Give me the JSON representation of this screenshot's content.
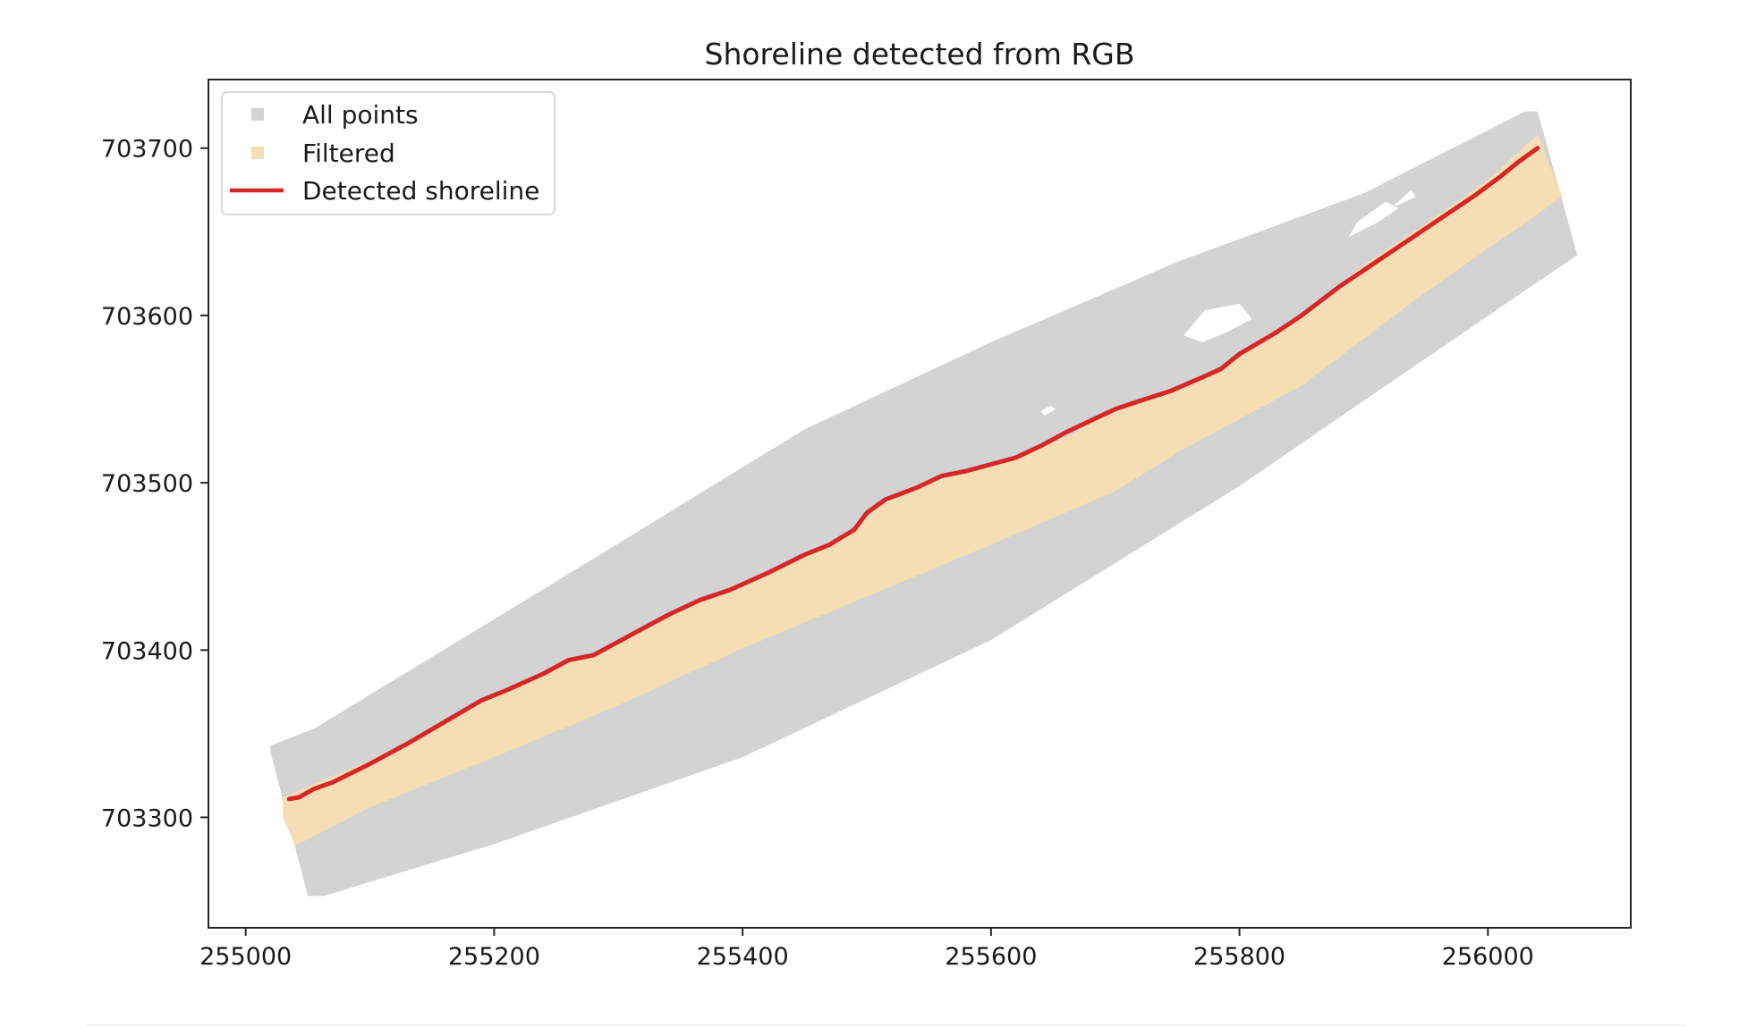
{
  "chart_data": {
    "type": "scatter",
    "title": "Shoreline detected from RGB",
    "xlabel": "",
    "ylabel": "",
    "xlim": [
      254970,
      256115
    ],
    "ylim": [
      703234,
      703741
    ],
    "x_ticks": [
      255000,
      255200,
      255400,
      255600,
      255800,
      256000
    ],
    "x_tick_labels": [
      "255000",
      "255200",
      "255400",
      "255600",
      "255800",
      "256000"
    ],
    "y_ticks": [
      703300,
      703400,
      703500,
      703600,
      703700
    ],
    "y_tick_labels": [
      "703300",
      "703400",
      "703500",
      "703600",
      "703700"
    ],
    "grid": false,
    "legend_position": "upper-left",
    "series": [
      {
        "name": "All points",
        "kind": "scatter-region",
        "color": "#d3d3d3",
        "polygon": [
          [
            255020,
            703343
          ],
          [
            255055,
            703353
          ],
          [
            255250,
            703441
          ],
          [
            255450,
            703532
          ],
          [
            255600,
            703584
          ],
          [
            255750,
            703632
          ],
          [
            255900,
            703673
          ],
          [
            256030,
            703722
          ],
          [
            256040,
            703722
          ],
          [
            256072,
            703636
          ],
          [
            256050,
            703625
          ],
          [
            255900,
            703549
          ],
          [
            255800,
            703498
          ],
          [
            255600,
            703406
          ],
          [
            255400,
            703336
          ],
          [
            255200,
            703284
          ],
          [
            255063,
            703253
          ],
          [
            255050,
            703253
          ],
          [
            255020,
            703339
          ]
        ],
        "holes": [
          [
            [
              255755,
              703588
            ],
            [
              255772,
              703603
            ],
            [
              255800,
              703607
            ],
            [
              255810,
              703598
            ],
            [
              255790,
              703590
            ],
            [
              255770,
              703584
            ]
          ],
          [
            [
              255888,
              703647
            ],
            [
              255912,
              703656
            ],
            [
              255928,
              703664
            ],
            [
              255918,
              703668
            ],
            [
              255895,
              703656
            ]
          ],
          [
            [
              255922,
              703664
            ],
            [
              255942,
              703671
            ],
            [
              255938,
              703675
            ]
          ],
          [
            [
              255643,
              703540
            ],
            [
              255652,
              703544
            ],
            [
              255648,
              703546
            ],
            [
              255640,
              703543
            ]
          ]
        ]
      },
      {
        "name": "Filtered",
        "kind": "scatter-region",
        "color": "#f5deb3",
        "polygon": [
          [
            255030,
            703312
          ],
          [
            255100,
            703334
          ],
          [
            255200,
            703372
          ],
          [
            255300,
            703405
          ],
          [
            255366,
            703430
          ],
          [
            255450,
            703457
          ],
          [
            255490,
            703472
          ],
          [
            255515,
            703490
          ],
          [
            255570,
            703505
          ],
          [
            255620,
            703515
          ],
          [
            255660,
            703527
          ],
          [
            255700,
            703544
          ],
          [
            255745,
            703555
          ],
          [
            255785,
            703568
          ],
          [
            255820,
            703585
          ],
          [
            255860,
            703606
          ],
          [
            255900,
            703630
          ],
          [
            255950,
            703655
          ],
          [
            256000,
            703681
          ],
          [
            256040,
            703708
          ],
          [
            256060,
            703671
          ],
          [
            255950,
            703614
          ],
          [
            255850,
            703558
          ],
          [
            255750,
            703518
          ],
          [
            255700,
            703495
          ],
          [
            255600,
            703463
          ],
          [
            255500,
            703432
          ],
          [
            255400,
            703401
          ],
          [
            255300,
            703367
          ],
          [
            255200,
            703336
          ],
          [
            255100,
            703306
          ],
          [
            255040,
            703283
          ],
          [
            255030,
            703300
          ]
        ]
      },
      {
        "name": "Detected shoreline",
        "kind": "line",
        "color": "#d62728",
        "x": [
          255035,
          255043,
          255055,
          255070,
          255100,
          255130,
          255160,
          255190,
          255210,
          255240,
          255260,
          255280,
          255300,
          255320,
          255340,
          255366,
          255390,
          255420,
          255450,
          255470,
          255490,
          255500,
          255515,
          255540,
          255560,
          255580,
          255600,
          255620,
          255640,
          255660,
          255680,
          255700,
          255720,
          255745,
          255770,
          255785,
          255800,
          255830,
          255850,
          255880,
          255900,
          255930,
          255960,
          255990,
          256010,
          256025,
          256040
        ],
        "y": [
          703311,
          703312,
          703317,
          703321,
          703332,
          703344,
          703357,
          703370,
          703376,
          703386,
          703394,
          703397,
          703405,
          703413,
          703421,
          703430,
          703436,
          703446,
          703457,
          703463,
          703472,
          703482,
          703490,
          703497,
          703504,
          703507,
          703511,
          703515,
          703522,
          703530,
          703537,
          703544,
          703549,
          703555,
          703563,
          703568,
          703577,
          703590,
          703600,
          703617,
          703627,
          703642,
          703657,
          703672,
          703683,
          703692,
          703700
        ]
      }
    ]
  }
}
